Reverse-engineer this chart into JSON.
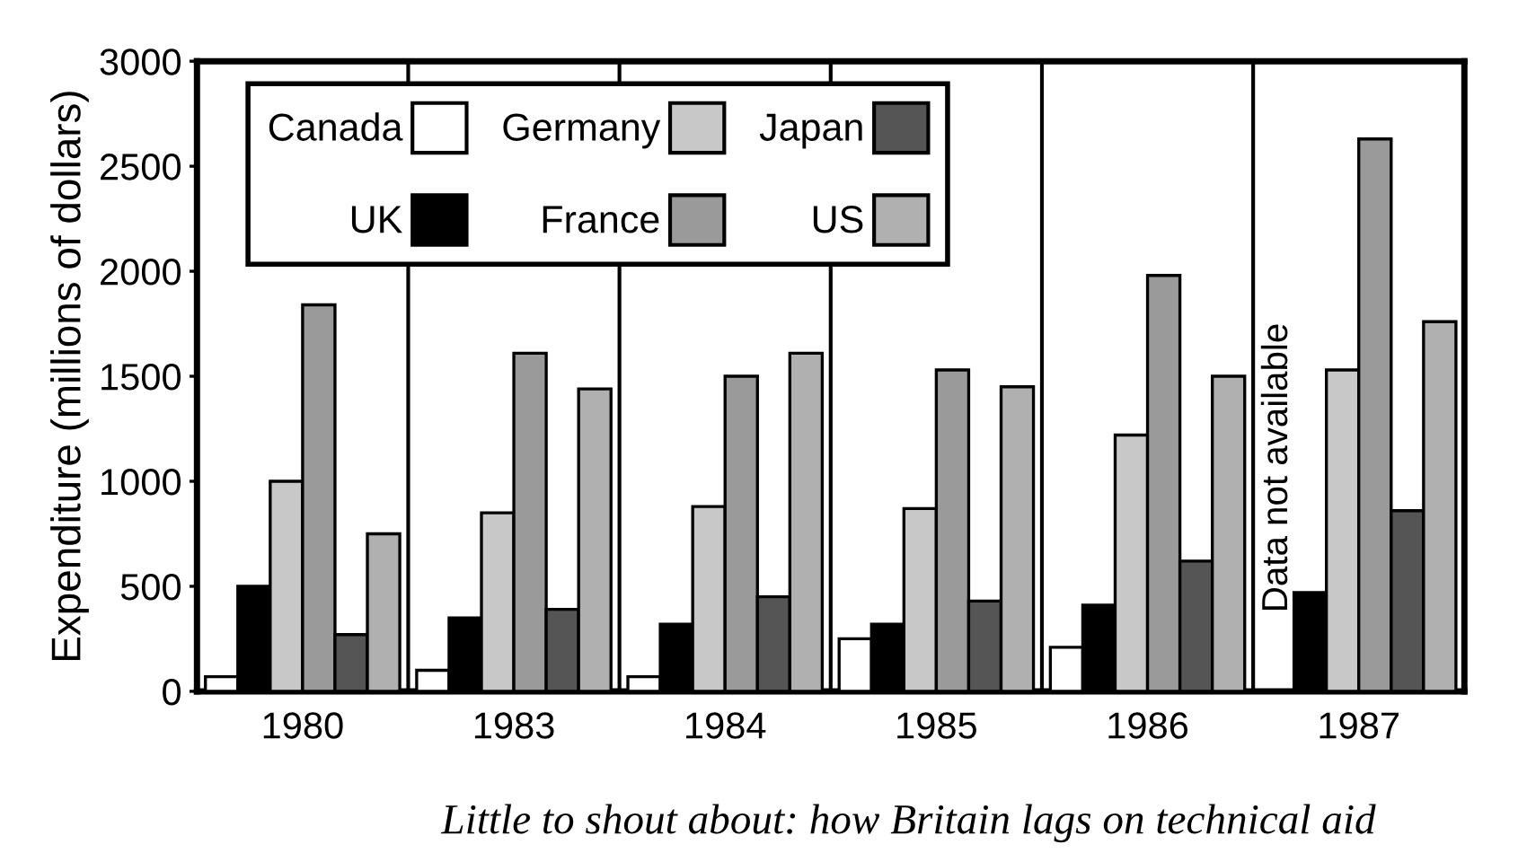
{
  "chart_data": {
    "type": "bar",
    "categories": [
      "1980",
      "1983",
      "1984",
      "1985",
      "1986",
      "1987"
    ],
    "series": [
      {
        "name": "Canada",
        "color": "#ffffff",
        "values": [
          70,
          100,
          70,
          250,
          210,
          null
        ]
      },
      {
        "name": "UK",
        "color": "#000000",
        "values": [
          500,
          350,
          320,
          320,
          410,
          470
        ]
      },
      {
        "name": "Germany",
        "color": "#c8c8c8",
        "values": [
          1000,
          850,
          880,
          870,
          1220,
          1530
        ]
      },
      {
        "name": "France",
        "color": "#9a9a9a",
        "values": [
          1840,
          1610,
          1500,
          1530,
          1980,
          2630
        ]
      },
      {
        "name": "Japan",
        "color": "#555555",
        "values": [
          270,
          390,
          450,
          430,
          620,
          860
        ]
      },
      {
        "name": "US",
        "color": "#b0b0b0",
        "values": [
          750,
          1440,
          1610,
          1450,
          1500,
          1760
        ]
      }
    ],
    "ylabel": "Expenditure (millions of dollars)",
    "ylim": [
      0,
      3000
    ],
    "yticks": [
      0,
      500,
      1000,
      1500,
      2000,
      2500,
      3000
    ],
    "grid": "x",
    "legend": "top left",
    "annotations": [
      "Data not available",
      "Little to shout about: how Britain lags on technical aid"
    ]
  }
}
